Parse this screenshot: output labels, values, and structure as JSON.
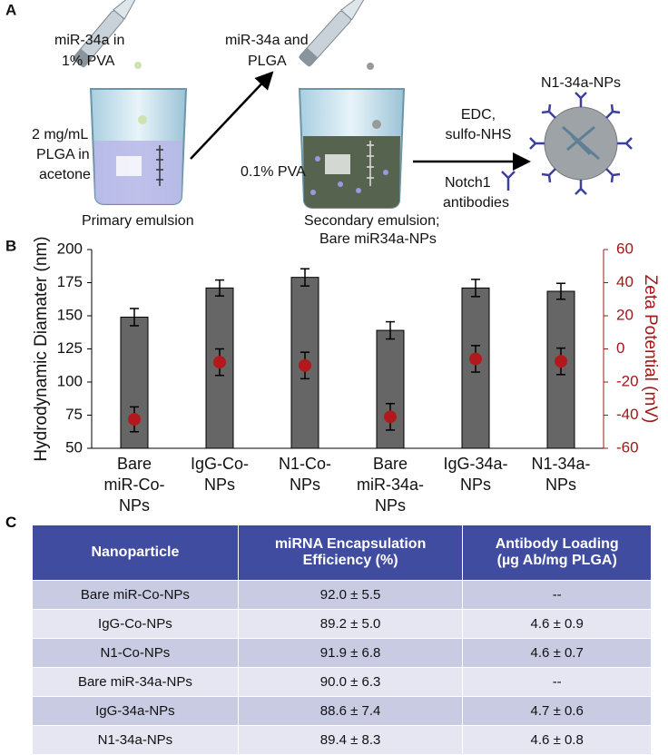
{
  "diagram": {
    "panel_label": "A",
    "pipette_1_label": [
      "miR-34a in",
      "1% PVA"
    ],
    "pipette_2_label": [
      "miR-34a and",
      "PLGA"
    ],
    "beaker_1_label": [
      "2 mg/mL",
      "PLGA in",
      "acetone"
    ],
    "beaker_1_caption": "Primary emulsion",
    "beaker_2_label": "0.1% PVA",
    "beaker_2_caption": [
      "Secondary emulsion;",
      "Bare miR34a-NPs"
    ],
    "reagents": [
      "EDC,",
      "sulfo-NHS"
    ],
    "antibody_label": [
      "Notch1",
      "antibodies"
    ],
    "product_label": "N1-34a-NPs"
  },
  "chart_data": {
    "panel_label": "B",
    "type": "bar",
    "categories": [
      "Bare\nmiR-Co-\nNPs",
      "IgG-Co-\nNPs",
      "N1-Co-\nNPs",
      "Bare\nmiR-34a-\nNPs",
      "IgG-34a-\nNPs",
      "N1-34a-\nNPs"
    ],
    "series": [
      {
        "type": "bar",
        "color": "#666666",
        "values": [
          149,
          171,
          179,
          139,
          171,
          168.5
        ],
        "errors": [
          6.5,
          6,
          6.5,
          6.5,
          6.5,
          6
        ]
      },
      {
        "type": "scatter",
        "axis": "y2",
        "color": "#b3191c",
        "values": [
          -42.5,
          -8,
          -10,
          -41,
          -6,
          -7.5
        ],
        "errors": [
          7.5,
          8,
          8,
          8,
          8,
          8
        ]
      }
    ],
    "y_label": "Hydrodynamic Diamater (nm)",
    "y2_label": "Zeta Potential (mV)",
    "ylim": [
      50,
      200
    ],
    "yticks": [
      50,
      75,
      100,
      125,
      150,
      175,
      200
    ],
    "y2lim": [
      -60,
      60
    ],
    "y2ticks": [
      -60,
      -40,
      -20,
      0,
      20,
      40,
      60
    ],
    "y2_color": "#a01818"
  },
  "table": {
    "panel_label": "C",
    "header": [
      "Nanoparticle",
      [
        "miRNA Encapsulation",
        "Efficiency (%)"
      ],
      [
        "Antibody Loading",
        "(µg Ab/mg PLGA)"
      ]
    ],
    "rows": [
      [
        "Bare miR-Co-NPs",
        "92.0 ± 5.5",
        "--"
      ],
      [
        "IgG-Co-NPs",
        "89.2 ± 5.0",
        "4.6 ± 0.9"
      ],
      [
        "N1-Co-NPs",
        "91.9 ± 6.8",
        "4.6 ± 0.7"
      ],
      [
        "Bare miR-34a-NPs",
        "90.0 ± 6.3",
        "--"
      ],
      [
        "IgG-34a-NPs",
        "88.6 ± 7.4",
        "4.7 ± 0.6"
      ],
      [
        "N1-34a-NPs",
        "89.4 ± 8.3",
        "4.6 ± 0.8"
      ]
    ]
  }
}
